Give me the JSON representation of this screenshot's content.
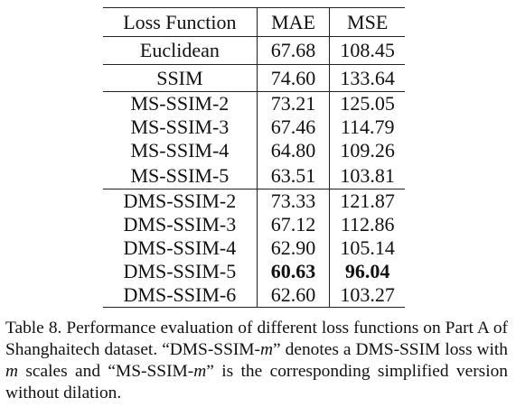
{
  "table": {
    "headers": [
      "Loss Function",
      "MAE",
      "MSE"
    ],
    "rows": [
      {
        "loss": "Euclidean",
        "mae": "67.68",
        "mse": "108.45"
      },
      {
        "loss": "SSIM",
        "mae": "74.60",
        "mse": "133.64"
      },
      {
        "loss": "MS-SSIM-2",
        "mae": "73.21",
        "mse": "125.05"
      },
      {
        "loss": "MS-SSIM-3",
        "mae": "67.46",
        "mse": "114.79"
      },
      {
        "loss": "MS-SSIM-4",
        "mae": "64.80",
        "mse": "109.26"
      },
      {
        "loss": "MS-SSIM-5",
        "mae": "63.51",
        "mse": "103.81"
      },
      {
        "loss": "DMS-SSIM-2",
        "mae": "73.33",
        "mse": "121.87"
      },
      {
        "loss": "DMS-SSIM-3",
        "mae": "67.12",
        "mse": "112.86"
      },
      {
        "loss": "DMS-SSIM-4",
        "mae": "62.90",
        "mse": "105.14"
      },
      {
        "loss": "DMS-SSIM-5",
        "mae": "60.63",
        "mse": "96.04"
      },
      {
        "loss": "DMS-SSIM-6",
        "mae": "62.60",
        "mse": "103.27"
      }
    ]
  },
  "caption": {
    "text_1": "Table 8. Performance evaluation of different loss functions on Part A of Shanghaitech dataset. “DMS-SSIM-",
    "var_1": "m",
    "text_2": "” denotes a DMS-SSIM loss with ",
    "var_2": "m",
    "text_3": " scales and “MS-SSIM-",
    "var_3": "m",
    "text_4": "” is the corresponding simplified version without dilation."
  }
}
